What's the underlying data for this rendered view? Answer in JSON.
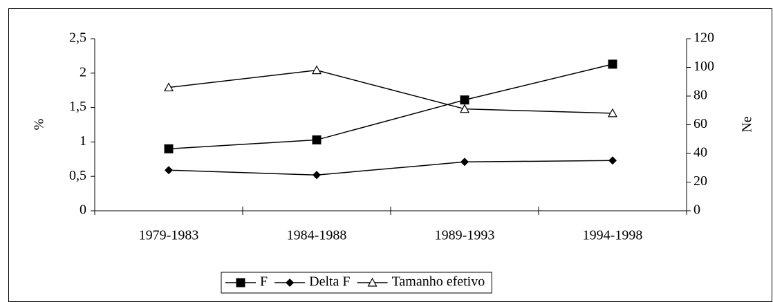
{
  "chart_data": {
    "type": "line",
    "categories": [
      "1979-1983",
      "1984-1988",
      "1989-1993",
      "1994-1998"
    ],
    "series": [
      {
        "name": "F",
        "color": "#000000",
        "marker": "square",
        "values": [
          0.9,
          1.03,
          1.61,
          2.13
        ]
      },
      {
        "name": "Delta F",
        "color": "#000000",
        "marker": "diamond",
        "values": [
          0.59,
          0.52,
          0.71,
          0.73
        ]
      },
      {
        "name": "Tamanho efetivo",
        "color": "#000000",
        "marker": "triangle",
        "axis": "y2",
        "values": [
          86,
          98,
          71,
          68
        ]
      }
    ],
    "ylabel": "%",
    "y2label": "Ne",
    "ylim": [
      0,
      2.5
    ],
    "yticks": [
      0,
      {
        "value": 0.5,
        "label": "0,5"
      },
      1,
      {
        "value": 1.5,
        "label": "1,5"
      },
      2,
      {
        "value": 2.5,
        "label": "2,5"
      }
    ],
    "y2lim": [
      0,
      120
    ],
    "y2ticks": [
      0,
      20,
      40,
      60,
      80,
      100,
      120
    ],
    "legend": "bottom"
  }
}
